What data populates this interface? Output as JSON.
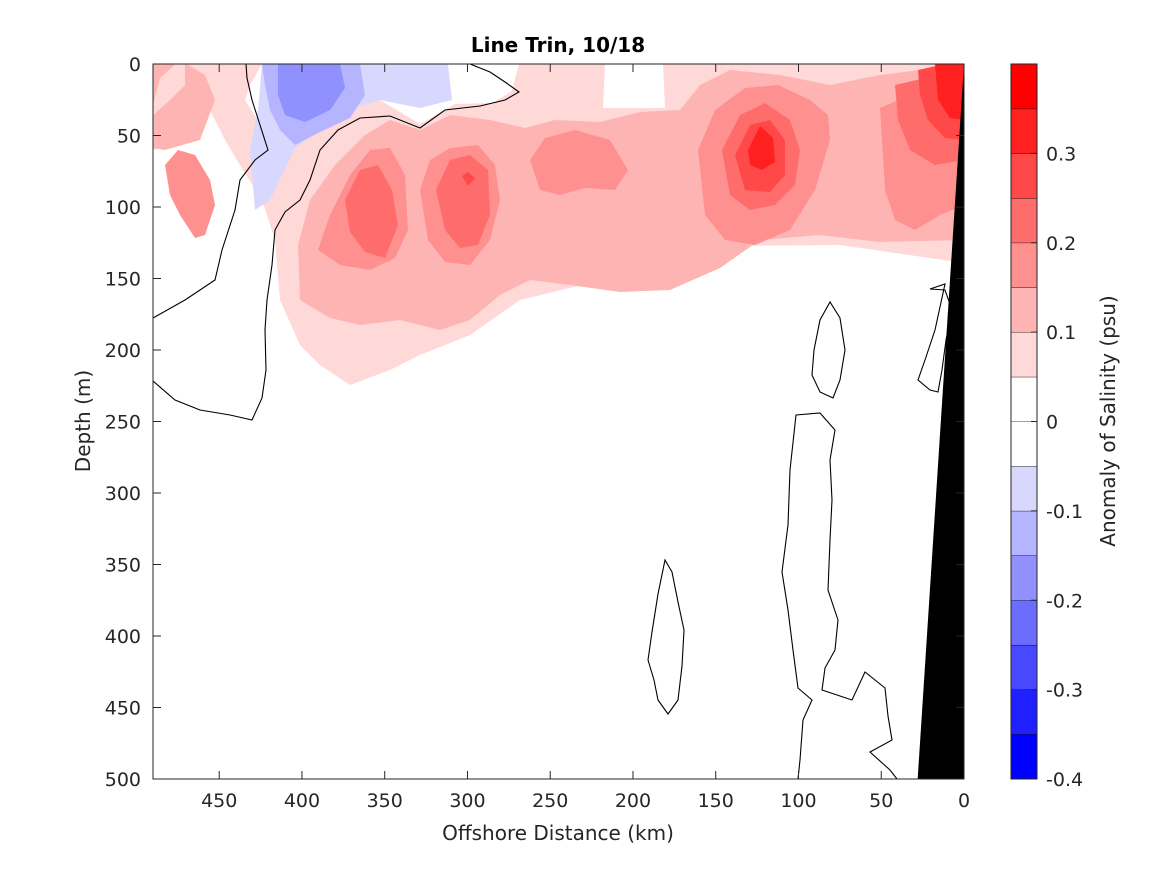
{
  "chart_data": {
    "type": "contour",
    "title": "Line Trin, 10/18",
    "xlabel": "Offshore Distance (km)",
    "ylabel": "Depth (m)",
    "colorbar_label": "Anomaly of Salinity (psu)",
    "xlim": [
      490,
      0
    ],
    "ylim": [
      0,
      500
    ],
    "x_reversed": true,
    "y_reversed": true,
    "x_ticks": [
      450,
      400,
      350,
      300,
      250,
      200,
      150,
      100,
      50,
      0
    ],
    "y_ticks": [
      0,
      50,
      100,
      150,
      200,
      250,
      300,
      350,
      400,
      450,
      500
    ],
    "colorbar_ticks": [
      0.3,
      0.2,
      0.1,
      0,
      -0.1,
      -0.2,
      -0.3,
      -0.4
    ],
    "colorbar_range": [
      -0.4,
      0.4
    ],
    "levels": [
      -0.4,
      -0.35,
      -0.3,
      -0.25,
      -0.2,
      -0.15,
      -0.1,
      -0.05,
      0,
      0.05,
      0.1,
      0.15,
      0.2,
      0.25,
      0.3,
      0.35,
      0.4
    ],
    "level_colors": [
      "#0000ff",
      "#2020ff",
      "#4848ff",
      "#6c6cff",
      "#9090ff",
      "#b4b4ff",
      "#d8d8ff",
      "#ffffff",
      "#ffffff",
      "#ffd8d8",
      "#ffb4b4",
      "#ff9090",
      "#ff6c6c",
      "#ff4848",
      "#ff2020",
      "#ff0000"
    ],
    "features": [
      {
        "name": "low-salinity core",
        "x": 395,
        "y": 20,
        "value": -0.2
      },
      {
        "name": "high-salinity core 1",
        "x": 350,
        "y": 110,
        "value": 0.2
      },
      {
        "name": "high-salinity core 2",
        "x": 300,
        "y": 100,
        "value": 0.25
      },
      {
        "name": "high-salinity core 3",
        "x": 120,
        "y": 60,
        "value": 0.35
      },
      {
        "name": "coastal maximum",
        "x": 15,
        "y": 20,
        "value": 0.35
      }
    ],
    "bathymetry": [
      [
        28,
        500
      ],
      [
        0,
        500
      ],
      [
        0,
        0
      ]
    ]
  }
}
